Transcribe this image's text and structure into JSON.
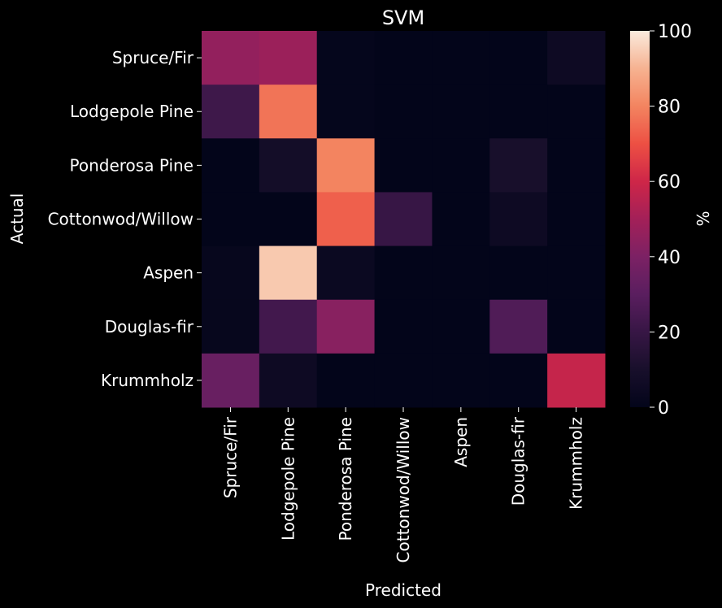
{
  "chart_data": {
    "type": "heatmap",
    "title": "SVM",
    "xlabel": "Predicted",
    "ylabel": "Actual",
    "x_categories": [
      "Spruce/Fir",
      "Lodgepole Pine",
      "Ponderosa Pine",
      "Cottonwod/Willow",
      "Aspen",
      "Douglas-fir",
      "Krummholz"
    ],
    "y_categories": [
      "Spruce/Fir",
      "Lodgepole Pine",
      "Ponderosa Pine",
      "Cottonwod/Willow",
      "Aspen",
      "Douglas-fir",
      "Krummholz"
    ],
    "values": [
      [
        46,
        48,
        1,
        0,
        0,
        0,
        5
      ],
      [
        22,
        77,
        1,
        0,
        0,
        0,
        0
      ],
      [
        0,
        8,
        80,
        0,
        0,
        10,
        0
      ],
      [
        0,
        0,
        73,
        20,
        0,
        5,
        0
      ],
      [
        2,
        94,
        4,
        0,
        0,
        0,
        0
      ],
      [
        2,
        23,
        43,
        0,
        0,
        27,
        0
      ],
      [
        34,
        5,
        0,
        0,
        0,
        0,
        58
      ]
    ],
    "colorbar": {
      "label": "%",
      "range": [
        0,
        100
      ],
      "ticks": [
        "0",
        "20",
        "40",
        "60",
        "80",
        "100"
      ]
    },
    "colormap": "rocket",
    "grid": false
  }
}
